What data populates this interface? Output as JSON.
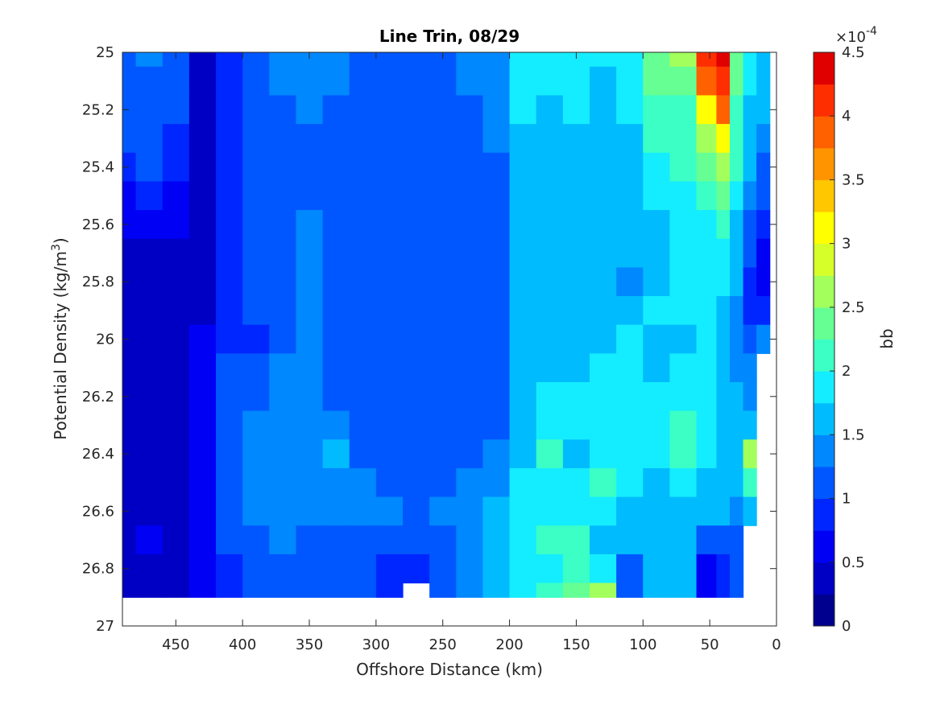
{
  "chart_data": {
    "type": "contour",
    "title": "Line Trin, 08/29",
    "xlabel": "Offshore Distance (km)",
    "ylabel_main": "Potential Density (kg/m",
    "ylabel_sup": "3",
    "ylabel_end": ")",
    "xlim": [
      490,
      0
    ],
    "ylim": [
      25,
      27
    ],
    "x_reversed": true,
    "y_reversed": true,
    "x_ticks": [
      450,
      400,
      350,
      300,
      250,
      200,
      150,
      100,
      50,
      0
    ],
    "x_tick_labels": [
      "450",
      "400",
      "350",
      "300",
      "250",
      "200",
      "150",
      "100",
      "50",
      "0"
    ],
    "y_ticks": [
      25,
      25.2,
      25.4,
      25.6,
      25.8,
      26,
      26.2,
      26.4,
      26.6,
      26.8,
      27
    ],
    "y_tick_labels": [
      "25",
      "25.2",
      "25.4",
      "25.6",
      "25.8",
      "26",
      "26.2",
      "26.4",
      "26.6",
      "26.8",
      "27"
    ],
    "colorbar": {
      "label": "bb",
      "multiplier_base": "×10",
      "multiplier_exp": "-4",
      "range": [
        0,
        4.5
      ],
      "ticks": [
        0,
        0.5,
        1,
        1.5,
        2,
        2.5,
        3,
        3.5,
        4,
        4.5
      ],
      "tick_labels": [
        "0",
        "0.5",
        "1",
        "1.5",
        "2",
        "2.5",
        "3",
        "3.5",
        "4",
        "4.5"
      ],
      "levels": [
        0,
        0.25,
        0.5,
        0.75,
        1,
        1.25,
        1.5,
        1.75,
        2,
        2.25,
        2.5,
        2.75,
        3,
        3.25,
        3.5,
        3.75,
        4,
        4.25,
        4.5
      ],
      "colors": [
        "#00008f",
        "#0000c4",
        "#0000f5",
        "#0026ff",
        "#0057ff",
        "#0088ff",
        "#00bcff",
        "#14edff",
        "#3bffc4",
        "#66ff94",
        "#a3ff5c",
        "#d6ff29",
        "#ffff00",
        "#ffc700",
        "#ff9400",
        "#ff6100",
        "#ff2e00",
        "#e00000",
        "#a80000"
      ]
    },
    "grid_x": [
      490,
      470,
      450,
      430,
      410,
      390,
      370,
      350,
      330,
      310,
      290,
      270,
      250,
      230,
      210,
      190,
      170,
      150,
      130,
      110,
      90,
      70,
      50,
      40,
      30,
      20,
      10
    ],
    "grid_y": [
      25,
      25.1,
      25.2,
      25.3,
      25.4,
      25.5,
      25.6,
      25.7,
      25.8,
      25.9,
      26,
      26.1,
      26.2,
      26.3,
      26.4,
      26.5,
      26.6,
      26.7,
      26.8,
      26.9
    ],
    "bb_x1e4": [
      [
        1.2,
        1.3,
        1.1,
        0.4,
        0.9,
        1.2,
        1.3,
        1.4,
        1.3,
        1.2,
        1.2,
        1.2,
        1.2,
        1.3,
        1.4,
        1.8,
        1.8,
        1.8,
        1.8,
        1.9,
        2.4,
        2.7,
        4.2,
        4.4,
        2.3,
        1.8,
        1.7
      ],
      [
        1.2,
        1.2,
        1.1,
        0.4,
        0.9,
        1.2,
        1.3,
        1.3,
        1.3,
        1.2,
        1.1,
        1.1,
        1.2,
        1.3,
        1.3,
        1.8,
        1.8,
        1.9,
        1.7,
        1.8,
        2.3,
        2.4,
        3.8,
        4.2,
        2.3,
        1.8,
        1.6
      ],
      [
        1.2,
        1.2,
        1.0,
        0.4,
        0.9,
        1.1,
        1.2,
        1.3,
        1.2,
        1.1,
        1.1,
        1.1,
        1.2,
        1.2,
        1.3,
        1.8,
        1.7,
        1.8,
        1.7,
        1.8,
        2.2,
        2.2,
        3.2,
        3.9,
        2.2,
        1.7,
        1.5
      ],
      [
        1.1,
        1.1,
        0.9,
        0.4,
        0.8,
        1.1,
        1.2,
        1.2,
        1.2,
        1.1,
        1.1,
        1.1,
        1.1,
        1.2,
        1.3,
        1.7,
        1.7,
        1.7,
        1.7,
        1.7,
        2.0,
        2.1,
        2.7,
        3.2,
        2.1,
        1.6,
        1.3
      ],
      [
        0.9,
        1.0,
        0.8,
        0.4,
        0.8,
        1.1,
        1.1,
        1.2,
        1.1,
        1.1,
        1.1,
        1.1,
        1.1,
        1.1,
        1.2,
        1.6,
        1.7,
        1.7,
        1.7,
        1.7,
        1.9,
        2.0,
        2.3,
        2.7,
        2.0,
        1.5,
        1.2
      ],
      [
        0.7,
        0.8,
        0.7,
        0.4,
        0.8,
        1.0,
        1.1,
        1.1,
        1.1,
        1.0,
        1.0,
        1.0,
        1.1,
        1.1,
        1.1,
        1.5,
        1.6,
        1.7,
        1.6,
        1.6,
        1.8,
        1.9,
        2.1,
        2.3,
        1.9,
        1.3,
        1.0
      ],
      [
        0.5,
        0.6,
        0.6,
        0.4,
        0.8,
        1.0,
        1.1,
        1.3,
        1.1,
        1.0,
        1.0,
        1.0,
        1.0,
        1.1,
        1.1,
        1.5,
        1.6,
        1.7,
        1.6,
        1.6,
        1.7,
        1.8,
        1.9,
        2.0,
        1.7,
        1.1,
        0.8
      ],
      [
        0.3,
        0.4,
        0.4,
        0.4,
        0.8,
        1.0,
        1.1,
        1.3,
        1.1,
        1.0,
        1.0,
        1.0,
        1.0,
        1.1,
        1.1,
        1.5,
        1.6,
        1.7,
        1.6,
        1.6,
        1.7,
        1.8,
        1.8,
        1.9,
        1.6,
        1.0,
        0.7
      ],
      [
        0.3,
        0.3,
        0.3,
        0.4,
        0.8,
        1.1,
        1.1,
        1.3,
        1.2,
        1.0,
        1.0,
        1.0,
        1.0,
        1.1,
        1.1,
        1.5,
        1.6,
        1.7,
        1.7,
        1.4,
        1.7,
        1.8,
        1.8,
        1.8,
        1.5,
        0.9,
        0.6
      ],
      [
        0.3,
        0.3,
        0.3,
        0.4,
        0.8,
        1.1,
        1.2,
        1.3,
        1.2,
        1.0,
        1.0,
        1.0,
        1.0,
        1.0,
        1.1,
        1.5,
        1.7,
        1.7,
        1.7,
        1.7,
        1.8,
        1.8,
        1.8,
        1.7,
        1.4,
        0.8,
        0.8
      ],
      [
        0.3,
        0.3,
        0.3,
        0.5,
        0.9,
        0.8,
        1.2,
        1.3,
        1.2,
        1.0,
        1.0,
        1.0,
        1.0,
        1.0,
        1.1,
        1.5,
        1.7,
        1.7,
        1.7,
        1.8,
        1.7,
        1.7,
        1.8,
        1.7,
        1.4,
        1.1,
        1.4
      ],
      [
        0.3,
        0.3,
        0.3,
        0.5,
        1.0,
        1.2,
        1.3,
        1.3,
        1.2,
        1.1,
        1.0,
        1.0,
        1.2,
        1.0,
        1.1,
        1.5,
        1.7,
        1.7,
        1.8,
        1.8,
        1.7,
        1.8,
        1.8,
        1.7,
        1.4,
        1.3,
        null
      ],
      [
        0.3,
        0.3,
        0.3,
        0.5,
        1.0,
        1.2,
        1.3,
        1.3,
        1.2,
        1.1,
        1.0,
        1.0,
        1.0,
        1.2,
        1.2,
        1.6,
        1.8,
        1.8,
        1.8,
        1.8,
        1.8,
        1.9,
        1.8,
        1.7,
        1.5,
        1.4,
        null
      ],
      [
        0.3,
        0.3,
        0.3,
        0.6,
        1.0,
        1.4,
        1.4,
        1.4,
        1.3,
        1.1,
        1.0,
        1.0,
        1.0,
        1.0,
        1.2,
        1.6,
        1.8,
        1.8,
        1.8,
        1.8,
        1.9,
        2.0,
        1.8,
        1.7,
        1.6,
        1.5,
        null
      ],
      [
        0.3,
        0.3,
        0.3,
        0.6,
        1.0,
        1.3,
        1.4,
        1.4,
        1.5,
        1.1,
        1.0,
        1.1,
        1.1,
        1.1,
        1.3,
        1.7,
        2.1,
        1.5,
        1.8,
        1.8,
        1.8,
        2.1,
        1.8,
        1.7,
        1.6,
        2.7,
        null
      ],
      [
        0.3,
        0.3,
        0.3,
        0.6,
        1.0,
        1.3,
        1.4,
        1.4,
        1.4,
        1.3,
        1.1,
        1.1,
        1.2,
        1.3,
        1.4,
        1.8,
        1.9,
        1.8,
        2.0,
        1.8,
        1.7,
        1.8,
        1.7,
        1.6,
        1.5,
        2.2,
        null
      ],
      [
        0.3,
        0.3,
        0.3,
        0.6,
        1.0,
        1.3,
        1.4,
        1.3,
        1.3,
        1.3,
        1.3,
        1.2,
        1.3,
        1.4,
        1.5,
        1.8,
        1.8,
        1.8,
        1.8,
        1.7,
        1.7,
        1.7,
        1.6,
        1.5,
        1.4,
        1.5,
        null
      ],
      [
        0.3,
        0.5,
        0.3,
        0.6,
        1.0,
        1.1,
        1.3,
        1.2,
        1.2,
        1.2,
        1.1,
        1.1,
        1.2,
        1.4,
        1.5,
        1.8,
        2.0,
        2.2,
        1.7,
        1.6,
        1.7,
        1.7,
        1.2,
        1.2,
        1.2,
        null,
        null
      ],
      [
        0.4,
        0.4,
        0.3,
        0.6,
        0.9,
        1.1,
        1.2,
        1.2,
        1.2,
        1.1,
        0.9,
        0.8,
        1.0,
        1.3,
        1.5,
        1.8,
        1.9,
        2.0,
        1.8,
        1.2,
        1.6,
        1.6,
        0.5,
        0.9,
        1.0,
        null,
        null
      ],
      [
        0.3,
        0.3,
        0.3,
        0.6,
        0.9,
        1.1,
        1.2,
        1.2,
        1.2,
        1.1,
        0.9,
        null,
        1.0,
        1.3,
        1.5,
        1.8,
        2.0,
        2.3,
        2.5,
        1.2,
        1.5,
        1.5,
        0.7,
        0.9,
        1.1,
        null,
        null
      ]
    ]
  }
}
